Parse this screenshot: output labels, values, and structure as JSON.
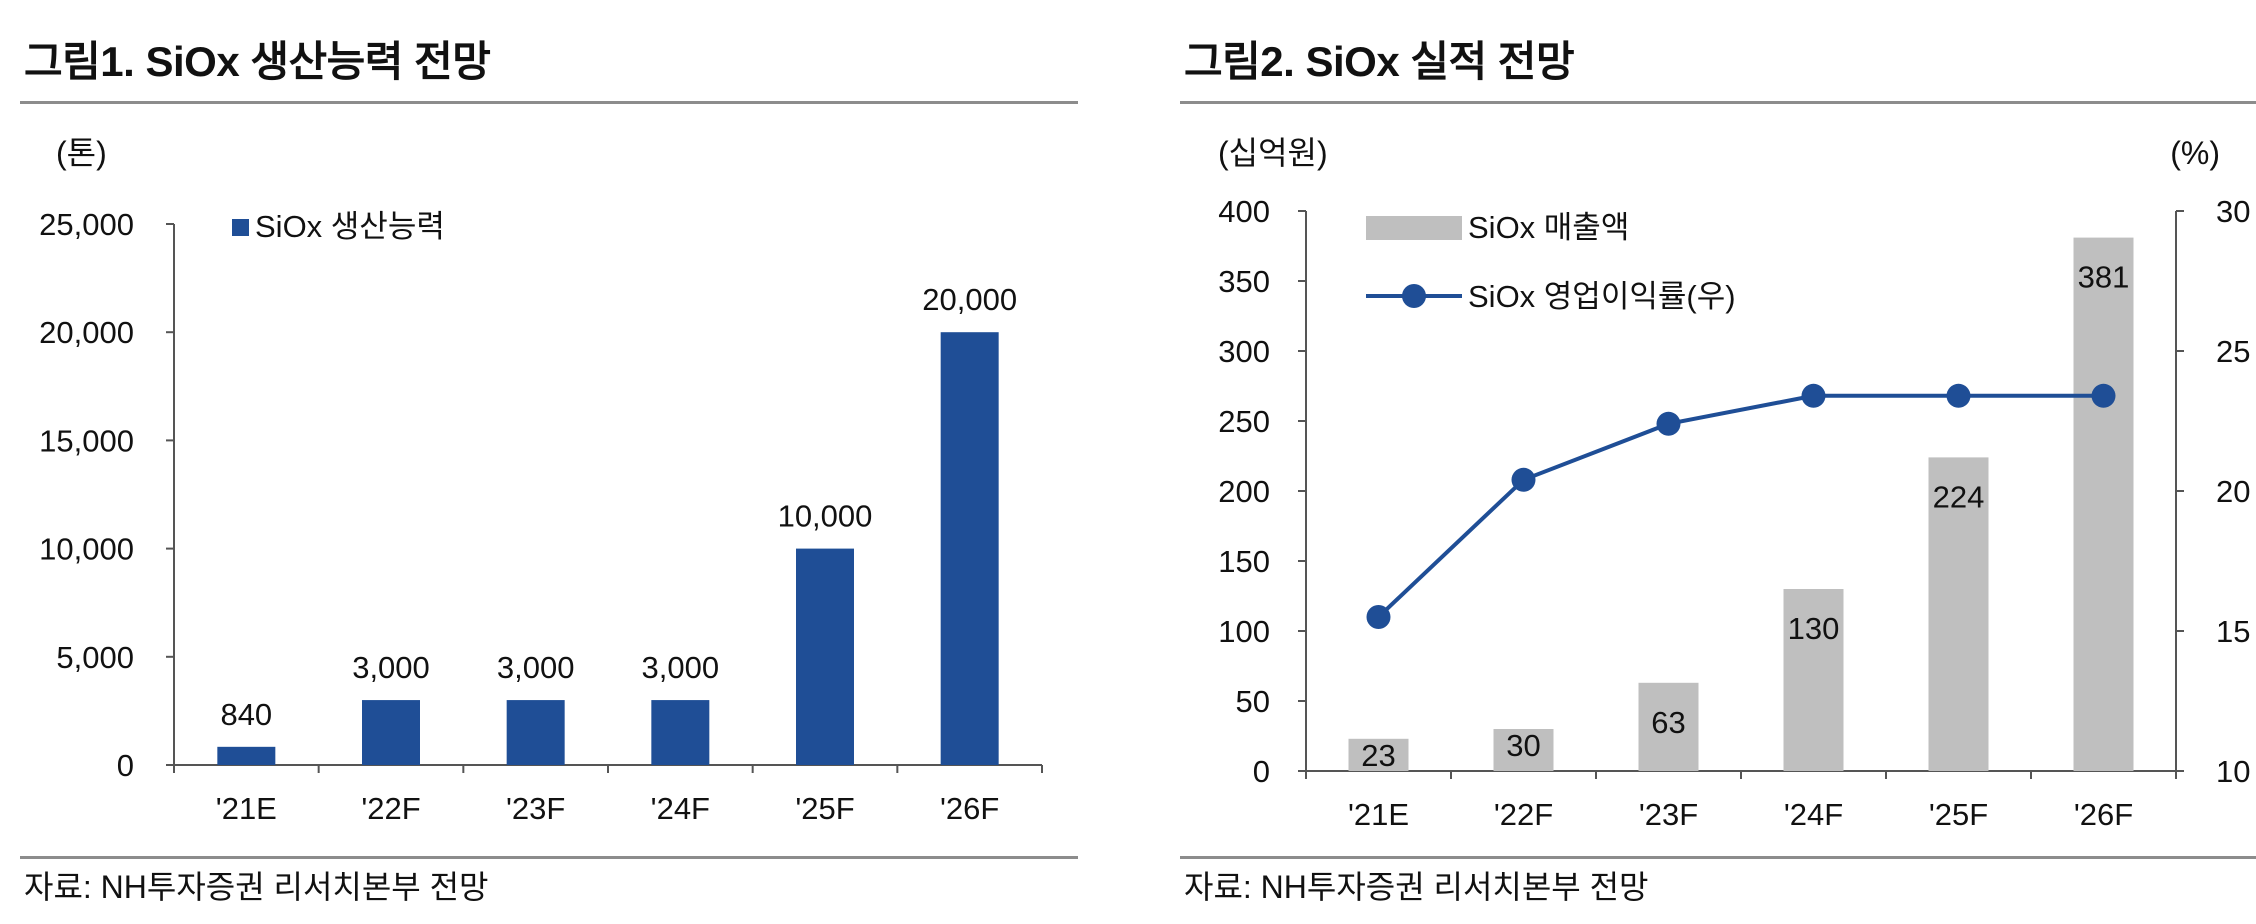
{
  "figure1": {
    "title": "그림1. SiOx 생산능력 전망",
    "source": "자료: NH투자증권 리서치본부 전망",
    "colors": {
      "bar": "#1f4e96",
      "axis": "#555555",
      "rule": "#8c8c8c"
    }
  },
  "figure2": {
    "title": "그림2. SiOx 실적 전망",
    "source": "자료: NH투자증권 리서치본부 전망",
    "colors": {
      "bar": "#bfbfbf",
      "line": "#1f4e96",
      "axis": "#555555",
      "rule": "#8c8c8c"
    }
  },
  "chart_data": [
    {
      "type": "bar",
      "title": "그림1. SiOx 생산능력 전망",
      "ylabel": "(톤)",
      "xlabel": "",
      "categories": [
        "'21E",
        "'22F",
        "'23F",
        "'24F",
        "'25F",
        "'26F"
      ],
      "series": [
        {
          "name": "SiOx 생산능력",
          "values": [
            840,
            3000,
            3000,
            3000,
            10000,
            20000
          ],
          "labels": [
            "840",
            "3,000",
            "3,000",
            "3,000",
            "10,000",
            "20,000"
          ]
        }
      ],
      "ylim": [
        0,
        25000
      ],
      "yticks": [
        0,
        5000,
        10000,
        15000,
        20000,
        25000
      ],
      "ytick_labels": [
        "0",
        "5,000",
        "10,000",
        "15,000",
        "20,000",
        "25,000"
      ],
      "legend": "top-left",
      "grid": false
    },
    {
      "type": "bar",
      "title": "그림2. SiOx 실적 전망",
      "ylabel": "(십억원)",
      "ylabel_right": "(%)",
      "categories": [
        "'21E",
        "'22F",
        "'23F",
        "'24F",
        "'25F",
        "'26F"
      ],
      "series": [
        {
          "name": "SiOx 매출액",
          "type": "bar",
          "axis": "left",
          "values": [
            23,
            30,
            63,
            130,
            224,
            381
          ],
          "labels": [
            "23",
            "30",
            "63",
            "130",
            "224",
            "381"
          ]
        },
        {
          "name": "SiOx 영업이익률(우)",
          "type": "line",
          "axis": "right",
          "values": [
            15.5,
            20.4,
            22.4,
            23.4,
            23.4,
            23.4
          ]
        }
      ],
      "ylim": [
        0,
        400
      ],
      "yticks": [
        0,
        50,
        100,
        150,
        200,
        250,
        300,
        350,
        400
      ],
      "ytick_labels": [
        "0",
        "50",
        "100",
        "150",
        "200",
        "250",
        "300",
        "350",
        "400"
      ],
      "ylim_right": [
        10,
        30
      ],
      "yticks_right": [
        10,
        15,
        20,
        25,
        30
      ],
      "ytick_labels_right": [
        "10",
        "15",
        "20",
        "25",
        "30"
      ],
      "legend": "top-left",
      "grid": false
    }
  ]
}
